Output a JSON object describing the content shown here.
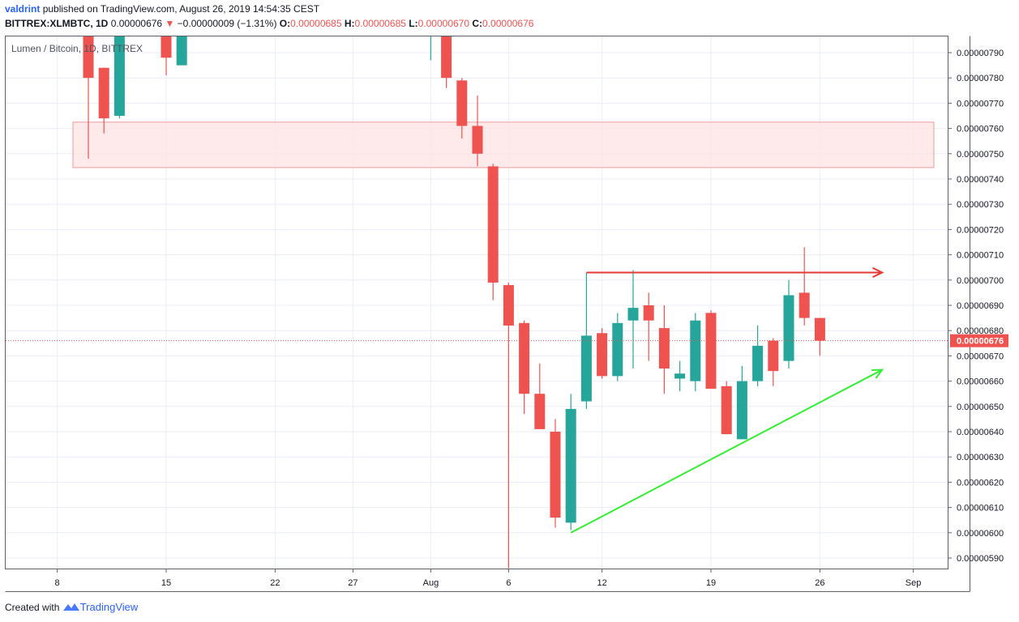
{
  "header": {
    "author": "valdrint",
    "published_text": "published on TradingView.com, August 26, 2019 14:54:35 CEST",
    "symbol": "BITTREX:XLMBTC, 1D",
    "last_price": "0.00000676",
    "change_arrow": "▼",
    "change": "−0.00000009 (−1.31%)",
    "o_label": "O:",
    "o_value": "0.00000685",
    "h_label": "H:",
    "h_value": "0.00000685",
    "l_label": "L:",
    "l_value": "0.00000670",
    "c_label": "C:",
    "c_value": "0.00000676"
  },
  "footer": {
    "created_with": "Created with",
    "brand": "TradingView"
  },
  "colors": {
    "up": "#26a69a",
    "down": "#ef5350",
    "grid": "#e9eef5",
    "zone_fill": "#fde3e3",
    "zone_stroke": "#f09a9a",
    "resistance_arrow": "#e53935",
    "support_arrow": "#33ee33",
    "last_price_line": "#ef5350"
  },
  "chart_data": {
    "type": "candlestick",
    "title": "Lumen / Bitcoin, 1D, BITTREX",
    "x_ticks": [
      "8",
      "15",
      "22",
      "27",
      "Aug",
      "6",
      "12",
      "19",
      "26",
      "Sep"
    ],
    "y_ticks": [
      "0.00000790",
      "0.00000780",
      "0.00000770",
      "0.00000760",
      "0.00000750",
      "0.00000740",
      "0.00000730",
      "0.00000720",
      "0.00000710",
      "0.00000700",
      "0.00000690",
      "0.00000680",
      "0.00000670",
      "0.00000660",
      "0.00000650",
      "0.00000640",
      "0.00000630",
      "0.00000620",
      "0.00000610",
      "0.00000600",
      "0.00000590"
    ],
    "ylim": [
      5.855e-06,
      8e-06
    ],
    "last_price": 6.76e-06,
    "last_price_label": "0.00000676",
    "candles": [
      {
        "date": "2019-07-10",
        "o": 8.05e-06,
        "h": 8.1e-06,
        "l": 7.48e-06,
        "c": 7.8e-06
      },
      {
        "date": "2019-07-11",
        "o": 7.84e-06,
        "h": 7.84e-06,
        "l": 7.58e-06,
        "c": 7.64e-06
      },
      {
        "date": "2019-07-12",
        "o": 7.65e-06,
        "h": 8.1e-06,
        "l": 7.64e-06,
        "c": 8.05e-06
      },
      {
        "date": "2019-07-15",
        "o": 8.1e-06,
        "h": 8.12e-06,
        "l": 7.81e-06,
        "c": 7.88e-06
      },
      {
        "date": "2019-07-16",
        "o": 7.85e-06,
        "h": 8.1e-06,
        "l": 7.85e-06,
        "c": 8.05e-06
      },
      {
        "date": "2019-08-01",
        "o": 8.05e-06,
        "h": 8.1e-06,
        "l": 7.87e-06,
        "c": 8.05e-06
      },
      {
        "date": "2019-08-02",
        "o": 8.05e-06,
        "h": 8.07e-06,
        "l": 7.76e-06,
        "c": 7.8e-06
      },
      {
        "date": "2019-08-03",
        "o": 7.79e-06,
        "h": 7.8e-06,
        "l": 7.56e-06,
        "c": 7.61e-06
      },
      {
        "date": "2019-08-04",
        "o": 7.61e-06,
        "h": 7.73e-06,
        "l": 7.45e-06,
        "c": 7.5e-06
      },
      {
        "date": "2019-08-05",
        "o": 7.45e-06,
        "h": 7.46e-06,
        "l": 6.92e-06,
        "c": 6.99e-06
      },
      {
        "date": "2019-08-06",
        "o": 6.98e-06,
        "h": 6.99e-06,
        "l": 5.86e-06,
        "c": 6.82e-06
      },
      {
        "date": "2019-08-07",
        "o": 6.83e-06,
        "h": 6.84e-06,
        "l": 6.47e-06,
        "c": 6.55e-06
      },
      {
        "date": "2019-08-08",
        "o": 6.55e-06,
        "h": 6.67e-06,
        "l": 6.41e-06,
        "c": 6.41e-06
      },
      {
        "date": "2019-08-09",
        "o": 6.4e-06,
        "h": 6.45e-06,
        "l": 6.02e-06,
        "c": 6.06e-06
      },
      {
        "date": "2019-08-10",
        "o": 6.04e-06,
        "h": 6.55e-06,
        "l": 6.01e-06,
        "c": 6.49e-06
      },
      {
        "date": "2019-08-11",
        "o": 6.52e-06,
        "h": 7.03e-06,
        "l": 6.49e-06,
        "c": 6.78e-06
      },
      {
        "date": "2019-08-12",
        "o": 6.79e-06,
        "h": 6.81e-06,
        "l": 6.61e-06,
        "c": 6.62e-06
      },
      {
        "date": "2019-08-13",
        "o": 6.62e-06,
        "h": 6.87e-06,
        "l": 6.6e-06,
        "c": 6.83e-06
      },
      {
        "date": "2019-08-14",
        "o": 6.84e-06,
        "h": 7.04e-06,
        "l": 6.65e-06,
        "c": 6.89e-06
      },
      {
        "date": "2019-08-15",
        "o": 6.9e-06,
        "h": 6.95e-06,
        "l": 6.68e-06,
        "c": 6.84e-06
      },
      {
        "date": "2019-08-16",
        "o": 6.81e-06,
        "h": 6.9e-06,
        "l": 6.55e-06,
        "c": 6.65e-06
      },
      {
        "date": "2019-08-17",
        "o": 6.61e-06,
        "h": 6.68e-06,
        "l": 6.56e-06,
        "c": 6.63e-06
      },
      {
        "date": "2019-08-18",
        "o": 6.6e-06,
        "h": 6.87e-06,
        "l": 6.56e-06,
        "c": 6.84e-06
      },
      {
        "date": "2019-08-19",
        "o": 6.87e-06,
        "h": 6.88e-06,
        "l": 6.57e-06,
        "c": 6.57e-06
      },
      {
        "date": "2019-08-20",
        "o": 6.58e-06,
        "h": 6.6e-06,
        "l": 6.39e-06,
        "c": 6.39e-06
      },
      {
        "date": "2019-08-21",
        "o": 6.37e-06,
        "h": 6.66e-06,
        "l": 6.37e-06,
        "c": 6.6e-06
      },
      {
        "date": "2019-08-22",
        "o": 6.6e-06,
        "h": 6.82e-06,
        "l": 6.58e-06,
        "c": 6.74e-06
      },
      {
        "date": "2019-08-23",
        "o": 6.76e-06,
        "h": 6.77e-06,
        "l": 6.58e-06,
        "c": 6.64e-06
      },
      {
        "date": "2019-08-24",
        "o": 6.68e-06,
        "h": 7e-06,
        "l": 6.65e-06,
        "c": 6.94e-06
      },
      {
        "date": "2019-08-25",
        "o": 6.95e-06,
        "h": 7.13e-06,
        "l": 6.82e-06,
        "c": 6.85e-06
      },
      {
        "date": "2019-08-26",
        "o": 6.85e-06,
        "h": 6.85e-06,
        "l": 6.7e-06,
        "c": 6.76e-06
      }
    ],
    "resistance_zone": {
      "from": 7.445e-06,
      "to": 7.625e-06
    },
    "annotations": [
      {
        "type": "horizontal-arrow",
        "from_date": "2019-08-11",
        "to_date": "2019-08-30",
        "price": 7.03e-06
      },
      {
        "type": "trend-arrow",
        "from_date": "2019-08-10",
        "from_price": 6e-06,
        "to_date": "2019-08-30",
        "to_price": 6.645e-06
      }
    ]
  }
}
